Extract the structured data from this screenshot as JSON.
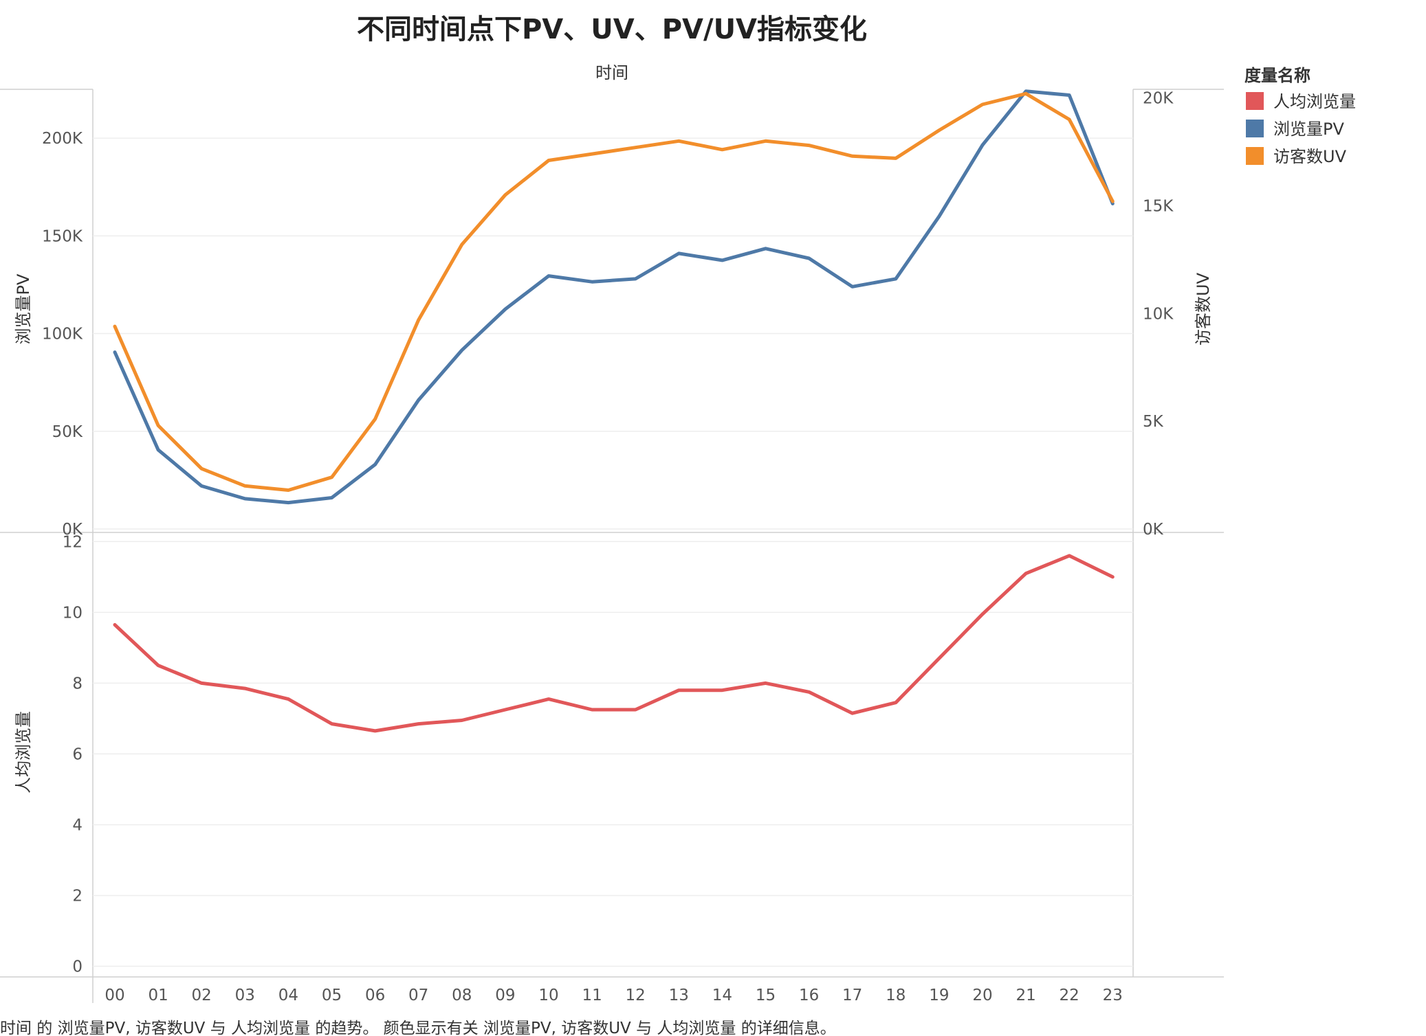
{
  "chart_data": {
    "type": "line",
    "title": "不同时间点下PV、UV、PV/UV指标变化",
    "xlabel": "时间",
    "categories": [
      "00",
      "01",
      "02",
      "03",
      "04",
      "05",
      "06",
      "07",
      "08",
      "09",
      "10",
      "11",
      "12",
      "13",
      "14",
      "15",
      "16",
      "17",
      "18",
      "19",
      "20",
      "21",
      "22",
      "23"
    ],
    "panels": [
      {
        "name": "top",
        "left_axis": {
          "label": "浏览量PV",
          "ylim": [
            0,
            225000
          ],
          "ticks": [
            0,
            50000,
            100000,
            150000,
            200000
          ],
          "tick_labels": [
            "0K",
            "50K",
            "100K",
            "150K",
            "200K"
          ]
        },
        "right_axis": {
          "label": "访客数UV",
          "ylim": [
            0,
            20400
          ],
          "ticks": [
            0,
            5000,
            10000,
            15000,
            20000
          ],
          "tick_labels": [
            "0K",
            "5K",
            "10K",
            "15K",
            "20K"
          ]
        }
      },
      {
        "name": "bottom",
        "left_axis": {
          "label": "人均浏览量",
          "ylim": [
            -0.3,
            12.2
          ],
          "ticks": [
            0,
            2,
            4,
            6,
            8,
            10,
            12
          ],
          "tick_labels": [
            "0",
            "2",
            "4",
            "6",
            "8",
            "10",
            "12"
          ]
        }
      }
    ],
    "series": [
      {
        "name": "浏览量PV",
        "panel": "top",
        "axis": "left",
        "color": "#4e79a7",
        "values": [
          90500,
          40500,
          22000,
          15500,
          13500,
          16000,
          33000,
          66000,
          91500,
          112500,
          129500,
          126500,
          128000,
          141000,
          137500,
          143500,
          138500,
          124000,
          128000,
          160000,
          196500,
          224000,
          222000,
          166500
        ]
      },
      {
        "name": "访客数UV",
        "panel": "top",
        "axis": "right",
        "color": "#f28e2b",
        "values": [
          9400,
          4800,
          2800,
          2000,
          1800,
          2400,
          5100,
          9700,
          13200,
          15500,
          17100,
          17400,
          17700,
          18000,
          17600,
          18000,
          17800,
          17300,
          17200,
          18500,
          19700,
          20200,
          19000,
          15200
        ]
      },
      {
        "name": "人均浏览量",
        "panel": "bottom",
        "axis": "left",
        "color": "#e15759",
        "values": [
          9.65,
          8.5,
          8.0,
          7.85,
          7.55,
          6.85,
          6.65,
          6.85,
          6.95,
          7.25,
          7.55,
          7.25,
          7.25,
          7.8,
          7.8,
          8.0,
          7.75,
          7.15,
          7.45,
          8.7,
          9.95,
          11.1,
          11.6,
          11.0
        ]
      }
    ],
    "legend": {
      "title": "度量名称",
      "position": "top-right",
      "entries": [
        "人均浏览量",
        "浏览量PV",
        "访客数UV"
      ]
    },
    "grid": true,
    "caption": "时间 的 浏览量PV, 访客数UV 与 人均浏览量 的趋势。 颜色显示有关 浏览量PV, 访客数UV 与 人均浏览量 的详细信息。"
  }
}
